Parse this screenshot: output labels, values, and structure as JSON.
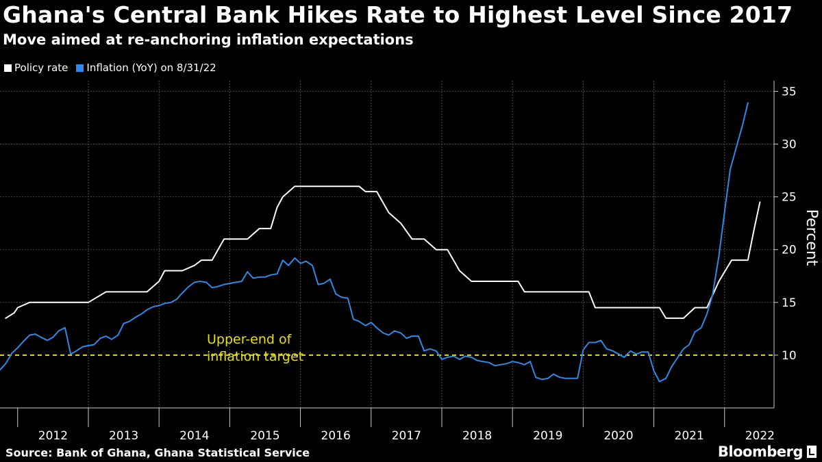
{
  "header": {
    "title": "Ghana's Central Bank Hikes Rate to Highest Level Since 2017",
    "subtitle": "Move aimed at re-anchoring inflation expectations"
  },
  "legend": [
    {
      "label": "Policy rate",
      "color": "#ffffff"
    },
    {
      "label": "Inflation (YoY) on 8/31/22",
      "color": "#2e8ae6"
    }
  ],
  "footer": {
    "source": "Source: Bank of Ghana, Ghana Statistical Service",
    "brand": "Bloomberg"
  },
  "chart_data": {
    "type": "line",
    "title": "Ghana's Central Bank Hikes Rate to Highest Level Since 2017",
    "subtitle": "Move aimed at re-anchoring inflation expectations",
    "xlabel": "",
    "ylabel": "Percent",
    "xlim": [
      2011.75,
      2022.7
    ],
    "ylim": [
      5,
      36
    ],
    "yticks": [
      10,
      15,
      20,
      25,
      30,
      35
    ],
    "year_labels": [
      "2012",
      "2013",
      "2014",
      "2015",
      "2016",
      "2017",
      "2018",
      "2019",
      "2020",
      "2021",
      "2022"
    ],
    "colors": {
      "policy": "#ffffff",
      "inflation": "#2e8ae6",
      "target": "#e8e000",
      "grid": "#4d4d4d"
    },
    "threshold": {
      "value": 10,
      "label_line1": "Upper-end of",
      "label_line2": "inflation target"
    },
    "series": [
      {
        "name": "Policy rate",
        "color": "#ffffff",
        "step": true,
        "points": [
          [
            2011.83,
            13.5
          ],
          [
            2011.95,
            14.0
          ],
          [
            2012.0,
            14.5
          ],
          [
            2012.17,
            15.0
          ],
          [
            2012.58,
            15.0
          ],
          [
            2012.83,
            15.0
          ],
          [
            2013.0,
            15.0
          ],
          [
            2013.25,
            16.0
          ],
          [
            2013.5,
            16.0
          ],
          [
            2013.75,
            16.0
          ],
          [
            2013.83,
            16.0
          ],
          [
            2014.0,
            17.0
          ],
          [
            2014.08,
            18.0
          ],
          [
            2014.33,
            18.0
          ],
          [
            2014.5,
            18.5
          ],
          [
            2014.6,
            19.0
          ],
          [
            2014.75,
            19.0
          ],
          [
            2014.92,
            21.0
          ],
          [
            2015.25,
            21.0
          ],
          [
            2015.42,
            22.0
          ],
          [
            2015.58,
            22.0
          ],
          [
            2015.67,
            24.0
          ],
          [
            2015.75,
            25.0
          ],
          [
            2015.92,
            26.0
          ],
          [
            2016.67,
            26.0
          ],
          [
            2016.83,
            26.0
          ],
          [
            2016.92,
            25.5
          ],
          [
            2017.08,
            25.5
          ],
          [
            2017.25,
            23.5
          ],
          [
            2017.42,
            22.5
          ],
          [
            2017.58,
            21.0
          ],
          [
            2017.75,
            21.0
          ],
          [
            2017.92,
            20.0
          ],
          [
            2018.08,
            20.0
          ],
          [
            2018.25,
            18.0
          ],
          [
            2018.42,
            17.0
          ],
          [
            2018.92,
            17.0
          ],
          [
            2019.08,
            17.0
          ],
          [
            2019.17,
            16.0
          ],
          [
            2019.92,
            16.0
          ],
          [
            2020.08,
            16.0
          ],
          [
            2020.17,
            14.5
          ],
          [
            2020.92,
            14.5
          ],
          [
            2021.08,
            14.5
          ],
          [
            2021.17,
            13.5
          ],
          [
            2021.42,
            13.5
          ],
          [
            2021.58,
            14.5
          ],
          [
            2021.75,
            14.5
          ],
          [
            2021.92,
            17.0
          ],
          [
            2022.1,
            19.0
          ],
          [
            2022.33,
            19.0
          ],
          [
            2022.42,
            22.0
          ],
          [
            2022.5,
            24.5
          ]
        ]
      },
      {
        "name": "Inflation (YoY) on 8/31/22",
        "color": "#2e8ae6",
        "step": false,
        "points": [
          [
            2011.75,
            8.6
          ],
          [
            2011.83,
            9.2
          ],
          [
            2011.92,
            10.2
          ],
          [
            2012.0,
            10.7
          ],
          [
            2012.08,
            11.3
          ],
          [
            2012.17,
            11.9
          ],
          [
            2012.25,
            12.0
          ],
          [
            2012.33,
            11.7
          ],
          [
            2012.42,
            11.4
          ],
          [
            2012.5,
            11.7
          ],
          [
            2012.58,
            12.3
          ],
          [
            2012.67,
            12.6
          ],
          [
            2012.75,
            10.1
          ],
          [
            2012.83,
            10.4
          ],
          [
            2012.92,
            10.8
          ],
          [
            2013.0,
            10.9
          ],
          [
            2013.08,
            11.0
          ],
          [
            2013.17,
            11.6
          ],
          [
            2013.25,
            11.8
          ],
          [
            2013.33,
            11.5
          ],
          [
            2013.42,
            11.9
          ],
          [
            2013.5,
            13.0
          ],
          [
            2013.58,
            13.2
          ],
          [
            2013.67,
            13.6
          ],
          [
            2013.75,
            13.9
          ],
          [
            2013.83,
            14.3
          ],
          [
            2013.92,
            14.6
          ],
          [
            2014.0,
            14.7
          ],
          [
            2014.08,
            14.9
          ],
          [
            2014.17,
            15.0
          ],
          [
            2014.25,
            15.3
          ],
          [
            2014.33,
            15.9
          ],
          [
            2014.42,
            16.5
          ],
          [
            2014.5,
            16.9
          ],
          [
            2014.58,
            17.0
          ],
          [
            2014.67,
            16.9
          ],
          [
            2014.75,
            16.4
          ],
          [
            2014.83,
            16.5
          ],
          [
            2014.92,
            16.7
          ],
          [
            2015.0,
            16.8
          ],
          [
            2015.08,
            16.9
          ],
          [
            2015.17,
            17.0
          ],
          [
            2015.25,
            17.9
          ],
          [
            2015.33,
            17.3
          ],
          [
            2015.42,
            17.4
          ],
          [
            2015.5,
            17.4
          ],
          [
            2015.58,
            17.6
          ],
          [
            2015.67,
            17.7
          ],
          [
            2015.75,
            19.0
          ],
          [
            2015.83,
            18.5
          ],
          [
            2015.92,
            19.2
          ],
          [
            2016.0,
            18.7
          ],
          [
            2016.08,
            18.9
          ],
          [
            2016.17,
            18.5
          ],
          [
            2016.25,
            16.7
          ],
          [
            2016.33,
            16.8
          ],
          [
            2016.42,
            17.2
          ],
          [
            2016.5,
            15.8
          ],
          [
            2016.58,
            15.5
          ],
          [
            2016.67,
            15.4
          ],
          [
            2016.75,
            13.4
          ],
          [
            2016.83,
            13.2
          ],
          [
            2016.92,
            12.8
          ],
          [
            2017.0,
            13.1
          ],
          [
            2017.08,
            12.6
          ],
          [
            2017.17,
            12.1
          ],
          [
            2017.25,
            11.9
          ],
          [
            2017.33,
            12.3
          ],
          [
            2017.42,
            12.1
          ],
          [
            2017.5,
            11.6
          ],
          [
            2017.58,
            11.8
          ],
          [
            2017.67,
            11.8
          ],
          [
            2017.75,
            10.4
          ],
          [
            2017.83,
            10.6
          ],
          [
            2017.92,
            10.4
          ],
          [
            2018.0,
            9.6
          ],
          [
            2018.08,
            9.8
          ],
          [
            2018.17,
            9.9
          ],
          [
            2018.25,
            9.6
          ],
          [
            2018.33,
            9.9
          ],
          [
            2018.42,
            9.8
          ],
          [
            2018.5,
            9.5
          ],
          [
            2018.58,
            9.4
          ],
          [
            2018.67,
            9.3
          ],
          [
            2018.75,
            9.0
          ],
          [
            2018.83,
            9.1
          ],
          [
            2018.92,
            9.2
          ],
          [
            2019.0,
            9.4
          ],
          [
            2019.08,
            9.3
          ],
          [
            2019.17,
            9.1
          ],
          [
            2019.25,
            9.4
          ],
          [
            2019.33,
            7.9
          ],
          [
            2019.42,
            7.7
          ],
          [
            2019.5,
            7.8
          ],
          [
            2019.58,
            8.2
          ],
          [
            2019.67,
            7.9
          ],
          [
            2019.75,
            7.8
          ],
          [
            2019.83,
            7.8
          ],
          [
            2019.92,
            7.8
          ],
          [
            2020.0,
            10.5
          ],
          [
            2020.08,
            11.2
          ],
          [
            2020.17,
            11.2
          ],
          [
            2020.25,
            11.4
          ],
          [
            2020.33,
            10.6
          ],
          [
            2020.42,
            10.4
          ],
          [
            2020.5,
            10.1
          ],
          [
            2020.58,
            9.8
          ],
          [
            2020.67,
            10.4
          ],
          [
            2020.75,
            10.1
          ],
          [
            2020.83,
            10.3
          ],
          [
            2020.92,
            10.3
          ],
          [
            2021.0,
            8.5
          ],
          [
            2021.08,
            7.5
          ],
          [
            2021.17,
            7.8
          ],
          [
            2021.25,
            8.9
          ],
          [
            2021.33,
            9.7
          ],
          [
            2021.42,
            10.6
          ],
          [
            2021.5,
            11.0
          ],
          [
            2021.58,
            12.2
          ],
          [
            2021.67,
            12.6
          ],
          [
            2021.75,
            13.9
          ],
          [
            2021.83,
            15.7
          ],
          [
            2021.92,
            19.4
          ],
          [
            2022.0,
            23.6
          ],
          [
            2022.08,
            27.6
          ],
          [
            2022.17,
            29.8
          ],
          [
            2022.25,
            31.7
          ],
          [
            2022.33,
            33.9
          ]
        ]
      }
    ]
  }
}
